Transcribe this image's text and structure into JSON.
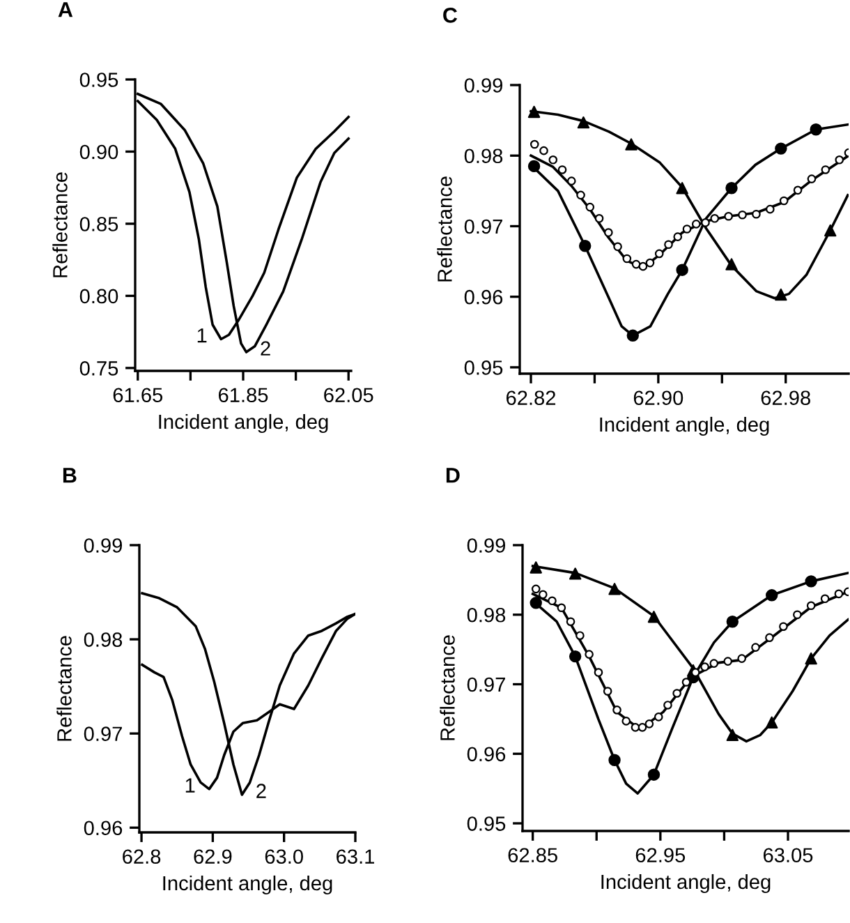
{
  "chart_data": [
    {
      "type": "line",
      "title": "A",
      "xlabel": "Incident angle, deg",
      "ylabel": "Reflectance",
      "xlim": [
        61.645,
        62.055
      ],
      "ylim": [
        0.748,
        0.95
      ],
      "xticks": [
        61.65,
        {
          "value": 61.75,
          "label": null
        },
        61.85,
        {
          "value": 61.95,
          "label": null
        },
        62.05
      ],
      "yticks": [
        {
          "value": 0.75,
          "label": "0.75"
        },
        {
          "value": 0.8,
          "label": "0.80"
        },
        0.85,
        {
          "value": 0.9,
          "label": "0.90"
        },
        0.95
      ],
      "series": [
        {
          "color": "#000000",
          "x": [
            61.65,
            61.686,
            61.721,
            61.748,
            61.766,
            61.779,
            61.792,
            61.808,
            61.823,
            61.841,
            61.868,
            61.89,
            61.917,
            61.952,
            61.988,
            62.023,
            62.05
          ],
          "values": [
            0.935,
            0.922,
            0.902,
            0.872,
            0.839,
            0.806,
            0.78,
            0.77,
            0.773,
            0.783,
            0.8,
            0.816,
            0.846,
            0.882,
            0.902,
            0.914,
            0.924
          ]
        },
        {
          "color": "#000000",
          "x": [
            61.65,
            61.694,
            61.739,
            61.774,
            61.801,
            61.819,
            61.832,
            61.846,
            61.856,
            61.872,
            61.894,
            61.926,
            61.961,
            61.997,
            62.023,
            62.05
          ],
          "values": [
            0.94,
            0.933,
            0.915,
            0.892,
            0.862,
            0.823,
            0.793,
            0.767,
            0.761,
            0.765,
            0.78,
            0.803,
            0.839,
            0.879,
            0.899,
            0.909
          ]
        }
      ],
      "annotations": [
        "1",
        "2"
      ]
    },
    {
      "type": "line",
      "title": "C",
      "xlabel": "Incident angle, deg",
      "ylabel": "Reflectance",
      "xlim": [
        62.813,
        63.0195
      ],
      "ylim": [
        0.9491,
        0.99
      ],
      "xticks": [
        62.82,
        {
          "value": 62.86,
          "label": null
        },
        {
          "value": 62.9,
          "label": "62.90"
        },
        {
          "value": 62.94,
          "label": null
        },
        62.98
      ],
      "yticks": [
        0.95,
        0.96,
        0.97,
        0.98,
        0.99
      ],
      "series": [
        {
          "color": "#000000",
          "x": [
            62.82,
            62.837,
            62.853,
            62.869,
            62.883,
            62.901,
            62.915,
            62.93,
            62.946,
            62.9615,
            62.973,
            62.982,
            62.993,
            63.008,
            63.019
          ],
          "values": [
            0.9863,
            0.9858,
            0.9849,
            0.9834,
            0.9817,
            0.979,
            0.9755,
            0.9697,
            0.9644,
            0.9608,
            0.9598,
            0.9604,
            0.9631,
            0.9694,
            0.9744
          ]
        },
        {
          "type": "scatter",
          "marker": "triangle",
          "color": "#000000",
          "x": [
            62.822,
            62.853,
            62.883,
            62.915,
            62.946,
            62.977,
            63.008
          ],
          "values": [
            0.9862,
            0.9847,
            0.9816,
            0.9754,
            0.9646,
            0.9603,
            0.9694
          ]
        },
        {
          "color": "#000000",
          "x": [
            62.82,
            62.837,
            62.854,
            62.869,
            62.877,
            62.884,
            62.895,
            62.906,
            62.915,
            62.93,
            62.946,
            62.961,
            62.977,
            62.999,
            63.019
          ],
          "values": [
            0.9787,
            0.975,
            0.9672,
            0.9598,
            0.9558,
            0.9545,
            0.9558,
            0.9604,
            0.9638,
            0.9711,
            0.9754,
            0.9787,
            0.981,
            0.9837,
            0.9844
          ]
        },
        {
          "type": "scatter",
          "marker": "circle",
          "color": "#000000",
          "x": [
            62.822,
            62.854,
            62.884,
            62.915,
            62.946,
            62.977,
            62.999
          ],
          "values": [
            0.9785,
            0.9672,
            0.9545,
            0.9638,
            0.9754,
            0.981,
            0.9837
          ]
        },
        {
          "color": "#000000",
          "x": [
            62.82,
            62.8339,
            62.8455,
            62.8571,
            62.8687,
            62.8803,
            62.8904,
            62.9006,
            62.9151,
            62.9296,
            62.9441,
            62.9615,
            62.9789,
            62.9963,
            63.0195
          ],
          "values": [
            0.98,
            0.9784,
            0.9757,
            0.9724,
            0.9684,
            0.9651,
            0.9641,
            0.9659,
            0.9691,
            0.9707,
            0.9714,
            0.9719,
            0.9734,
            0.9765,
            0.98
          ]
        },
        {
          "type": "scatter",
          "marker": "circle",
          "color": "#ffffff",
          "x": [
            62.8223,
            62.8281,
            62.8339,
            62.8397,
            62.8455,
            62.8513,
            62.8571,
            62.8629,
            62.8687,
            62.8745,
            62.8803,
            62.8861,
            62.8904,
            62.8948,
            62.9006,
            62.9064,
            62.9122,
            62.918,
            62.9238,
            62.9296,
            62.9354,
            62.9441,
            62.9528,
            62.9615,
            62.9702,
            62.9789,
            62.9876,
            62.9963,
            63.005,
            63.0137,
            63.0195
          ],
          "values": [
            0.9816,
            0.9807,
            0.9794,
            0.978,
            0.9764,
            0.9744,
            0.9727,
            0.9711,
            0.9691,
            0.9671,
            0.9654,
            0.9646,
            0.9643,
            0.9648,
            0.9661,
            0.9674,
            0.9685,
            0.9696,
            0.9703,
            0.9705,
            0.9711,
            0.9714,
            0.9716,
            0.9717,
            0.9724,
            0.9736,
            0.9751,
            0.9767,
            0.978,
            0.9794,
            0.9804
          ]
        }
      ]
    },
    {
      "type": "line",
      "title": "B",
      "xlabel": "Incident angle, deg",
      "ylabel": "Reflectance",
      "xlim": [
        62.797,
        63.1
      ],
      "ylim": [
        0.9595,
        0.99
      ],
      "xticks": [
        62.8,
        62.9,
        {
          "value": 63.0,
          "label": "63.0"
        },
        63.1
      ],
      "yticks": [
        0.96,
        0.97,
        0.98,
        0.99
      ],
      "series": [
        {
          "color": "#000000",
          "x": [
            62.801,
            62.818,
            62.831,
            62.843,
            62.857,
            62.869,
            62.883,
            62.895,
            62.906,
            62.916,
            62.929,
            62.942,
            62.962,
            62.981,
            62.994,
            63.014,
            63.034,
            63.053,
            63.073,
            63.089,
            63.1
          ],
          "values": [
            0.9773,
            0.9765,
            0.976,
            0.9736,
            0.9697,
            0.9667,
            0.9648,
            0.9641,
            0.9653,
            0.9677,
            0.9702,
            0.9711,
            0.9714,
            0.9724,
            0.9731,
            0.9726,
            0.9751,
            0.978,
            0.9809,
            0.9822,
            0.9827
          ]
        },
        {
          "color": "#000000",
          "x": [
            62.801,
            62.824,
            62.85,
            62.876,
            62.889,
            62.902,
            62.916,
            62.929,
            62.941,
            62.952,
            62.965,
            62.978,
            62.994,
            63.014,
            63.034,
            63.053,
            63.073,
            63.089,
            63.1
          ],
          "values": [
            0.9849,
            0.9844,
            0.9834,
            0.9814,
            0.979,
            0.9755,
            0.9711,
            0.9667,
            0.9635,
            0.9648,
            0.9677,
            0.9711,
            0.9751,
            0.9785,
            0.9804,
            0.9809,
            0.9817,
            0.9824,
            0.9827
          ]
        }
      ],
      "annotations": [
        "1",
        "2"
      ]
    },
    {
      "type": "line",
      "title": "D",
      "xlabel": "Incident angle, deg",
      "ylabel": "Reflectance",
      "xlim": [
        62.842,
        63.0975
      ],
      "ylim": [
        0.9489,
        0.99
      ],
      "xticks": [
        62.85,
        {
          "value": 62.9,
          "label": null
        },
        62.95,
        {
          "value": 63.0,
          "label": null
        },
        63.05
      ],
      "yticks": [
        0.95,
        0.96,
        0.97,
        0.98,
        0.99
      ],
      "series": [
        {
          "color": "#000000",
          "x": [
            62.85,
            62.8833,
            62.9141,
            62.9449,
            62.9757,
            62.9957,
            63.0065,
            63.0174,
            63.0283,
            63.0373,
            63.0536,
            63.0681,
            63.0826,
            63.0971
          ],
          "values": [
            0.987,
            0.986,
            0.9838,
            0.9798,
            0.9723,
            0.9657,
            0.9629,
            0.9618,
            0.9627,
            0.9645,
            0.969,
            0.9737,
            0.977,
            0.9793
          ]
        },
        {
          "type": "scatter",
          "marker": "triangle",
          "color": "#000000",
          "x": [
            62.8525,
            62.8833,
            62.9141,
            62.9449,
            62.9757,
            63.0065,
            63.0373,
            63.0681
          ],
          "values": [
            0.9868,
            0.9859,
            0.9837,
            0.9797,
            0.972,
            0.9627,
            0.9645,
            0.9737
          ]
        },
        {
          "color": "#000000",
          "x": [
            62.85,
            62.8688,
            62.8833,
            62.9014,
            62.9141,
            62.9232,
            62.9322,
            62.9449,
            62.9594,
            62.9757,
            62.992,
            63.0065,
            63.0373,
            63.0681,
            63.0971
          ],
          "values": [
            0.982,
            0.979,
            0.974,
            0.965,
            0.9591,
            0.9557,
            0.9543,
            0.957,
            0.9637,
            0.971,
            0.976,
            0.979,
            0.9828,
            0.9848,
            0.986
          ]
        },
        {
          "type": "scatter",
          "marker": "circle",
          "color": "#000000",
          "x": [
            62.8525,
            62.8833,
            62.9141,
            62.9449,
            62.9757,
            63.0065,
            63.0373,
            63.0681
          ],
          "values": [
            0.9817,
            0.974,
            0.9591,
            0.957,
            0.971,
            0.979,
            0.9828,
            0.9848
          ]
        },
        {
          "color": "#000000",
          "x": [
            62.85,
            62.8725,
            62.8942,
            62.916,
            62.9341,
            62.9522,
            62.9739,
            62.9957,
            63.0138,
            63.0391,
            63.0681,
            63.0971
          ],
          "values": [
            0.983,
            0.981,
            0.974,
            0.966,
            0.9635,
            0.966,
            0.971,
            0.9731,
            0.9735,
            0.977,
            0.9811,
            0.9833
          ]
        },
        {
          "type": "scatter",
          "marker": "circle",
          "color": "#ffffff",
          "x": [
            62.8525,
            62.858,
            62.8652,
            62.8725,
            62.8797,
            62.887,
            62.8942,
            62.9015,
            62.9087,
            62.916,
            62.9232,
            62.9304,
            62.9359,
            62.9413,
            62.9486,
            62.9558,
            62.963,
            62.9703,
            62.9775,
            62.9848,
            62.992,
            63.0029,
            63.0138,
            63.0246,
            63.0355,
            63.0464,
            63.0573,
            63.0681,
            63.079,
            63.0898,
            63.0971
          ],
          "values": [
            0.9837,
            0.9829,
            0.982,
            0.981,
            0.979,
            0.977,
            0.9743,
            0.9717,
            0.969,
            0.9663,
            0.9647,
            0.9638,
            0.9638,
            0.9643,
            0.9653,
            0.967,
            0.9687,
            0.9703,
            0.9717,
            0.9725,
            0.973,
            0.9733,
            0.9737,
            0.9753,
            0.9767,
            0.9783,
            0.98,
            0.9813,
            0.9823,
            0.983,
            0.9833
          ]
        }
      ]
    }
  ]
}
